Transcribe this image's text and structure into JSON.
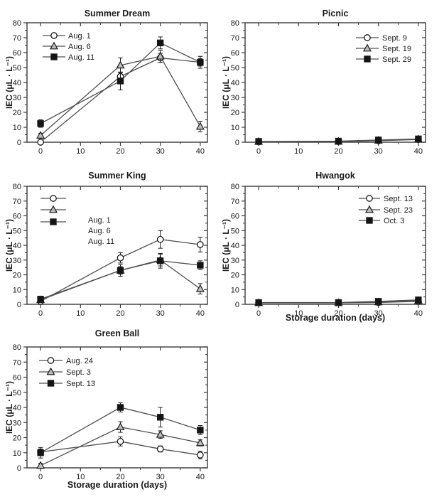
{
  "colors": {
    "axis": "#3a3a3a",
    "text": "#1a1a1a",
    "line": "#4f4f4f",
    "error": "#1a1a1a",
    "marker_stroke": "#1a1a1a",
    "circle_fill": "#ffffff",
    "triangle_fill": "#bdbdbd",
    "square_fill": "#141414"
  },
  "chart_data": [
    {
      "id": "summer-dream",
      "type": "line",
      "title": "Summer Dream",
      "ylabel": "IEC (μL · L⁻¹)",
      "x": [
        0,
        20,
        30,
        40
      ],
      "xlim": [
        -3.4,
        41.8
      ],
      "ylim": [
        0,
        80
      ],
      "xticks": [
        0,
        10,
        20,
        30,
        40
      ],
      "yticks": [
        0,
        10,
        20,
        30,
        40,
        50,
        60,
        70,
        80
      ],
      "legend_position": "upper-left",
      "series": [
        {
          "name": "Aug. 1",
          "marker": "circle",
          "values": [
            0,
            44,
            56.5,
            53.5
          ],
          "errors": [
            0.8,
            2.5,
            3,
            2.5
          ]
        },
        {
          "name": "Aug. 6",
          "marker": "triangle",
          "values": [
            4.5,
            51.5,
            57.5,
            10.5
          ],
          "errors": [
            1.5,
            5,
            4,
            3.5
          ]
        },
        {
          "name": "Aug. 11",
          "marker": "square",
          "values": [
            12.5,
            41,
            66.5,
            53.5
          ],
          "errors": [
            2.5,
            6,
            4,
            4
          ]
        }
      ]
    },
    {
      "id": "picnic",
      "type": "line",
      "title": "Picnic",
      "ylabel": "IEC (μL · L⁻¹)",
      "x": [
        0,
        20,
        30,
        40
      ],
      "xlim": [
        -3.4,
        41.8
      ],
      "ylim": [
        0,
        80
      ],
      "xticks": [
        0,
        10,
        20,
        30,
        40
      ],
      "yticks": [
        0,
        10,
        20,
        30,
        40,
        50,
        60,
        70,
        80
      ],
      "legend_position": "upper-right",
      "series": [
        {
          "name": "Sept. 9",
          "marker": "circle",
          "values": [
            0.3,
            0.4,
            1,
            1.8
          ],
          "errors": [
            0.2,
            0.3,
            0.5,
            0.8
          ]
        },
        {
          "name": "Sept. 19",
          "marker": "triangle",
          "values": [
            0.4,
            0.5,
            1.2,
            2
          ],
          "errors": [
            0.3,
            0.3,
            0.5,
            0.6
          ]
        },
        {
          "name": "Sept. 29",
          "marker": "square",
          "values": [
            0.5,
            0.7,
            1.5,
            2.2
          ],
          "errors": [
            0.3,
            0.4,
            0.6,
            1.2
          ]
        }
      ]
    },
    {
      "id": "summer-king",
      "type": "line",
      "title": "Summer King",
      "ylabel": "IEC (μL · L⁻¹)",
      "x": [
        0,
        20,
        30,
        40
      ],
      "xlim": [
        -3.4,
        41.8
      ],
      "ylim": [
        0,
        80
      ],
      "xticks": [
        0,
        10,
        20,
        30,
        40
      ],
      "yticks": [
        0,
        10,
        20,
        30,
        40,
        50,
        60,
        70,
        80
      ],
      "legend_position": "upper-left-split",
      "series": [
        {
          "name": "Aug. 1",
          "marker": "circle",
          "values": [
            2,
            31.5,
            44,
            40.5
          ],
          "errors": [
            0.8,
            3.5,
            6,
            5
          ]
        },
        {
          "name": "Aug. 6",
          "marker": "triangle",
          "values": [
            3,
            23,
            30,
            10.5
          ],
          "errors": [
            0.8,
            2.5,
            4,
            3.5
          ]
        },
        {
          "name": "Aug. 11",
          "marker": "square",
          "values": [
            3.5,
            23,
            29.5,
            26.5
          ],
          "errors": [
            1.5,
            4,
            5,
            3
          ]
        }
      ]
    },
    {
      "id": "hwangok",
      "type": "line",
      "title": "Hwangok",
      "ylabel": "IEC (μL · L⁻¹)",
      "xlabel": "Storage duration (days)",
      "x": [
        0,
        20,
        30,
        40
      ],
      "xlim": [
        -3.4,
        41.8
      ],
      "ylim": [
        0,
        80
      ],
      "xticks": [
        0,
        10,
        20,
        30,
        40
      ],
      "yticks": [
        0,
        10,
        20,
        30,
        40,
        50,
        60,
        70,
        80
      ],
      "legend_position": "upper-right",
      "series": [
        {
          "name": "Sept. 13",
          "marker": "circle",
          "values": [
            1,
            1,
            1.2,
            2
          ],
          "errors": [
            0.3,
            0.3,
            0.4,
            0.6
          ]
        },
        {
          "name": "Sept. 23",
          "marker": "triangle",
          "values": [
            1,
            1,
            1.5,
            2.5
          ],
          "errors": [
            0.3,
            0.3,
            0.4,
            0.7
          ]
        },
        {
          "name": "Oct. 3",
          "marker": "square",
          "values": [
            1.2,
            1.2,
            2,
            3
          ],
          "errors": [
            0.4,
            0.4,
            0.5,
            0.9
          ]
        }
      ]
    },
    {
      "id": "green-ball",
      "type": "line",
      "title": "Green Ball",
      "ylabel": "IEC (μL · L⁻¹)",
      "xlabel": "Storage duration (days)",
      "x": [
        0,
        20,
        30,
        40
      ],
      "xlim": [
        -3.4,
        41.8
      ],
      "ylim": [
        0,
        80
      ],
      "xticks": [
        0,
        10,
        20,
        30,
        40
      ],
      "yticks": [
        0,
        10,
        20,
        30,
        40,
        50,
        60,
        70,
        80
      ],
      "legend_position": "upper-left",
      "series": [
        {
          "name": "Aug. 24",
          "marker": "circle",
          "values": [
            10.5,
            17.5,
            12.5,
            8.5
          ],
          "errors": [
            2,
            3,
            2,
            2.5
          ]
        },
        {
          "name": "Sept. 3",
          "marker": "triangle",
          "values": [
            1.5,
            27,
            22,
            16.5
          ],
          "errors": [
            1.5,
            3.5,
            2.5,
            2
          ]
        },
        {
          "name": "Sept. 13",
          "marker": "square",
          "values": [
            10,
            40,
            33.5,
            25
          ],
          "errors": [
            3.5,
            3,
            6.5,
            3
          ]
        }
      ]
    }
  ]
}
